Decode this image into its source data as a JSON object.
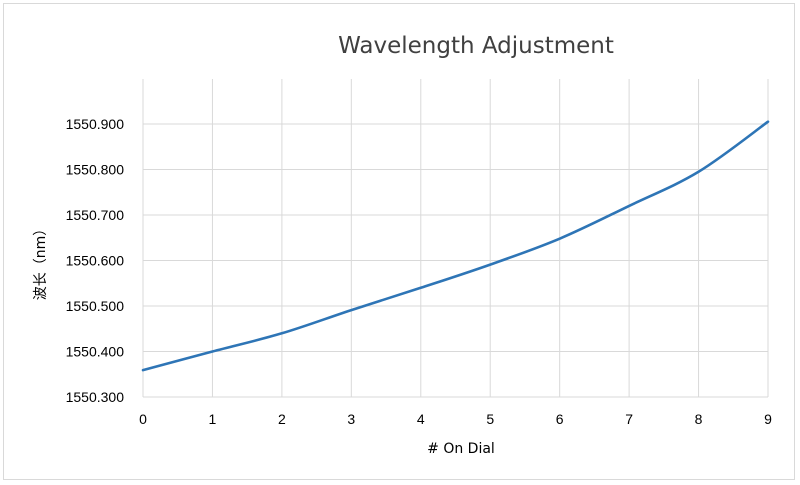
{
  "chart_data": {
    "type": "line",
    "title": "Wavelength  Adjustment",
    "xlabel": "# On Dial",
    "ylabel": "波长（nm）",
    "x": [
      0,
      1,
      2,
      3,
      4,
      5,
      6,
      7,
      8,
      9
    ],
    "series": [
      {
        "values": [
          1550.359,
          1550.4,
          1550.44,
          1550.491,
          1550.54,
          1550.591,
          1550.648,
          1550.72,
          1550.795,
          1550.905
        ]
      }
    ],
    "xlim": [
      0,
      9
    ],
    "ylim": [
      1550.3,
      1550.9
    ],
    "y_ticks": [
      "1550.300",
      "1550.400",
      "1550.500",
      "1550.600",
      "1550.700",
      "1550.800",
      "1550.900"
    ],
    "x_ticks": [
      "0",
      "1",
      "2",
      "3",
      "4",
      "5",
      "6",
      "7",
      "8",
      "9"
    ],
    "grid": true,
    "line_color": "#2e75b6"
  }
}
